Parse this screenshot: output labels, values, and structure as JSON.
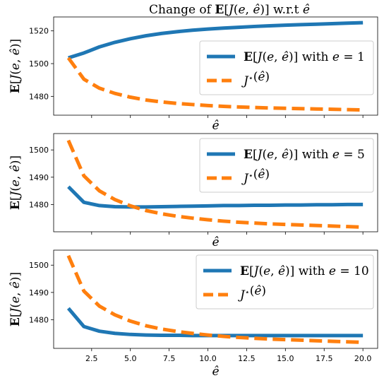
{
  "figure": {
    "title": "Change of E[J(e, ê)] w.r.t ê"
  },
  "colors": {
    "series_expected": "#1f77b4",
    "series_optimal": "#ff7f0e"
  },
  "chart_data": [
    {
      "type": "line",
      "xlabel": "ê",
      "ylabel": "E[J(e, ê)]",
      "xlim": [
        0.05,
        20.95
      ],
      "ylim": [
        1468.5,
        1528.5
      ],
      "x_ticks": [],
      "y_ticks": [
        1480,
        1500,
        1520
      ],
      "legend_position": "center-right",
      "x": [
        1,
        2,
        3,
        4,
        5,
        6,
        7,
        8,
        9,
        10,
        11,
        12,
        13,
        14,
        15,
        16,
        17,
        18,
        19,
        20
      ],
      "series": [
        {
          "name": "E[J(e, ê)] with e = 1",
          "style": "solid",
          "values": [
            1503.5,
            1506.5,
            1510.2,
            1513.0,
            1515.2,
            1517.0,
            1518.4,
            1519.5,
            1520.4,
            1521.1,
            1521.7,
            1522.2,
            1522.7,
            1523.1,
            1523.5,
            1523.8,
            1524.1,
            1524.4,
            1524.7,
            1525.0
          ]
        },
        {
          "name": "J*(ê)",
          "style": "dashed",
          "values": [
            1503.5,
            1490.5,
            1485.0,
            1481.8,
            1479.5,
            1477.8,
            1476.6,
            1475.7,
            1475.0,
            1474.4,
            1473.9,
            1473.5,
            1473.2,
            1472.9,
            1472.7,
            1472.5,
            1472.3,
            1472.1,
            1471.9,
            1471.7
          ]
        }
      ]
    },
    {
      "type": "line",
      "xlabel": "ê",
      "ylabel": "E[J(e, ê)]",
      "xlim": [
        0.05,
        20.95
      ],
      "ylim": [
        1470.0,
        1506.0
      ],
      "x_ticks": [],
      "y_ticks": [
        1480,
        1490,
        1500
      ],
      "legend_position": "top-right",
      "x": [
        1,
        2,
        3,
        4,
        5,
        6,
        7,
        8,
        9,
        10,
        11,
        12,
        13,
        14,
        15,
        16,
        17,
        18,
        19,
        20
      ],
      "series": [
        {
          "name": "E[J(e, ê)] with e = 5",
          "style": "solid",
          "values": [
            1486.5,
            1480.8,
            1479.6,
            1479.2,
            1479.1,
            1479.1,
            1479.2,
            1479.3,
            1479.4,
            1479.5,
            1479.6,
            1479.6,
            1479.7,
            1479.7,
            1479.8,
            1479.8,
            1479.9,
            1479.9,
            1480.0,
            1480.0
          ]
        },
        {
          "name": "J*(ê)",
          "style": "dashed",
          "values": [
            1503.5,
            1490.5,
            1485.0,
            1481.8,
            1479.5,
            1477.8,
            1476.6,
            1475.7,
            1475.0,
            1474.4,
            1473.9,
            1473.5,
            1473.2,
            1472.9,
            1472.7,
            1472.5,
            1472.3,
            1472.1,
            1471.9,
            1471.7
          ]
        }
      ]
    },
    {
      "type": "line",
      "xlabel": "ê",
      "ylabel": "E[J(e, ê)]",
      "xlim": [
        0.05,
        20.95
      ],
      "ylim": [
        1469.5,
        1505.5
      ],
      "x_ticks": [
        2.5,
        5.0,
        7.5,
        10.0,
        12.5,
        15.0,
        17.5,
        20.0
      ],
      "x_tick_labels": [
        "2.5",
        "5.0",
        "7.5",
        "10.0",
        "12.5",
        "15.0",
        "17.5",
        "20.0"
      ],
      "y_ticks": [
        1480,
        1490,
        1500
      ],
      "legend_position": "top-right",
      "x": [
        1,
        2,
        3,
        4,
        5,
        6,
        7,
        8,
        9,
        10,
        11,
        12,
        13,
        14,
        15,
        16,
        17,
        18,
        19,
        20
      ],
      "series": [
        {
          "name": "E[J(e, ê)] with e = 10",
          "style": "solid",
          "values": [
            1484.2,
            1477.5,
            1475.8,
            1475.0,
            1474.6,
            1474.4,
            1474.3,
            1474.3,
            1474.2,
            1474.2,
            1474.2,
            1474.2,
            1474.2,
            1474.2,
            1474.2,
            1474.2,
            1474.2,
            1474.2,
            1474.2,
            1474.2
          ]
        },
        {
          "name": "J*(ê)",
          "style": "dashed",
          "values": [
            1503.5,
            1490.5,
            1485.0,
            1481.8,
            1479.5,
            1477.8,
            1476.6,
            1475.7,
            1475.0,
            1474.4,
            1473.9,
            1473.5,
            1473.2,
            1472.9,
            1472.7,
            1472.5,
            1472.3,
            1472.1,
            1471.9,
            1471.7
          ]
        }
      ]
    }
  ]
}
